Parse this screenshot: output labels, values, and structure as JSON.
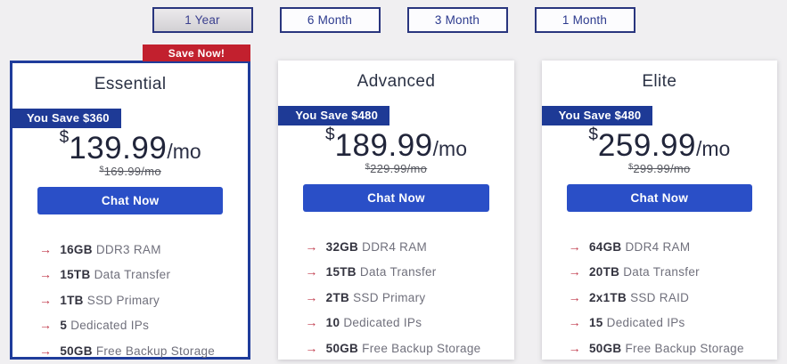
{
  "tabs": [
    {
      "label": "1 Year",
      "selected": true
    },
    {
      "label": "6 Month",
      "selected": false
    },
    {
      "label": "3 Month",
      "selected": false
    },
    {
      "label": "1 Month",
      "selected": false
    }
  ],
  "promo_badge": "Save Now!",
  "plans": [
    {
      "name": "Essential",
      "save_badge": "You Save $360",
      "currency": "$",
      "price": "139.99",
      "period": "/mo",
      "old_currency": "$",
      "old_price": "169.99/mo",
      "cta": "Chat Now",
      "highlighted": true,
      "features": [
        {
          "value": "16GB",
          "label": "DDR3 RAM"
        },
        {
          "value": "15TB",
          "label": "Data Transfer"
        },
        {
          "value": "1TB",
          "label": "SSD Primary"
        },
        {
          "value": "5",
          "label": "Dedicated IPs"
        },
        {
          "value": "50GB",
          "label": "Free Backup Storage"
        }
      ]
    },
    {
      "name": "Advanced",
      "save_badge": "You Save $480",
      "currency": "$",
      "price": "189.99",
      "period": "/mo",
      "old_currency": "$",
      "old_price": "229.99/mo",
      "cta": "Chat Now",
      "highlighted": false,
      "features": [
        {
          "value": "32GB",
          "label": "DDR4 RAM"
        },
        {
          "value": "15TB",
          "label": "Data Transfer"
        },
        {
          "value": "2TB",
          "label": "SSD Primary"
        },
        {
          "value": "10",
          "label": "Dedicated IPs"
        },
        {
          "value": "50GB",
          "label": "Free Backup Storage"
        }
      ]
    },
    {
      "name": "Elite",
      "save_badge": "You Save $480",
      "currency": "$",
      "price": "259.99",
      "period": "/mo",
      "old_currency": "$",
      "old_price": "299.99/mo",
      "cta": "Chat Now",
      "highlighted": false,
      "features": [
        {
          "value": "64GB",
          "label": "DDR4 RAM"
        },
        {
          "value": "20TB",
          "label": "Data Transfer"
        },
        {
          "value": "2x1TB",
          "label": "SSD RAID"
        },
        {
          "value": "15",
          "label": "Dedicated IPs"
        },
        {
          "value": "50GB",
          "label": "Free Backup Storage"
        }
      ]
    }
  ],
  "icons": {
    "feature_arrow": "→"
  },
  "colors": {
    "page_background": "#f0eff1",
    "highlight_border": "#1f3c9b",
    "save_badge_bg": "#1e3a96",
    "promo_badge_bg": "#c2202e",
    "cta_bg": "#2a4fc7",
    "tab_border": "#29357e",
    "feature_arrow": "#c0394b"
  }
}
